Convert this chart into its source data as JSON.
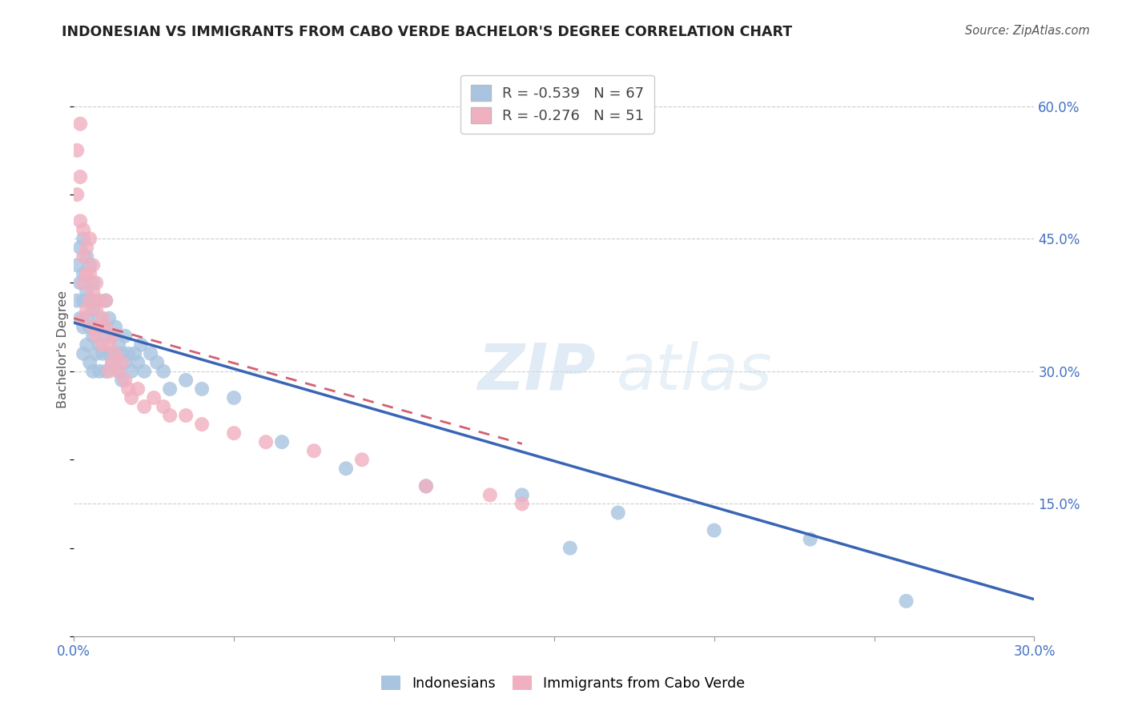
{
  "title": "INDONESIAN VS IMMIGRANTS FROM CABO VERDE BACHELOR'S DEGREE CORRELATION CHART",
  "source": "Source: ZipAtlas.com",
  "ylabel": "Bachelor's Degree",
  "xlim": [
    0.0,
    0.3
  ],
  "ylim": [
    0.0,
    0.65
  ],
  "y_ticks_right": [
    0.15,
    0.3,
    0.45,
    0.6
  ],
  "y_tick_labels_right": [
    "15.0%",
    "30.0%",
    "45.0%",
    "60.0%"
  ],
  "grid_color": "#c8c8c8",
  "background_color": "#ffffff",
  "watermark_zip": "ZIP",
  "watermark_atlas": "atlas",
  "indonesian_color": "#a8c4e0",
  "cabo_verde_color": "#f0b0c0",
  "indonesian_line_color": "#3a65b5",
  "cabo_verde_line_color": "#d46070",
  "legend_r_indonesian": "-0.539",
  "legend_n_indonesian": "67",
  "legend_r_cabo": "-0.276",
  "legend_n_cabo": "51",
  "indonesian_x": [
    0.001,
    0.001,
    0.002,
    0.002,
    0.002,
    0.003,
    0.003,
    0.003,
    0.003,
    0.003,
    0.004,
    0.004,
    0.004,
    0.004,
    0.005,
    0.005,
    0.005,
    0.005,
    0.006,
    0.006,
    0.006,
    0.006,
    0.007,
    0.007,
    0.007,
    0.008,
    0.008,
    0.008,
    0.009,
    0.009,
    0.01,
    0.01,
    0.01,
    0.011,
    0.011,
    0.012,
    0.012,
    0.013,
    0.013,
    0.014,
    0.014,
    0.015,
    0.015,
    0.016,
    0.016,
    0.017,
    0.018,
    0.019,
    0.02,
    0.021,
    0.022,
    0.024,
    0.026,
    0.028,
    0.03,
    0.035,
    0.04,
    0.05,
    0.065,
    0.085,
    0.11,
    0.14,
    0.17,
    0.2,
    0.23,
    0.26,
    0.155
  ],
  "indonesian_y": [
    0.42,
    0.38,
    0.44,
    0.4,
    0.36,
    0.45,
    0.41,
    0.38,
    0.35,
    0.32,
    0.43,
    0.39,
    0.36,
    0.33,
    0.42,
    0.38,
    0.35,
    0.31,
    0.4,
    0.37,
    0.34,
    0.3,
    0.38,
    0.35,
    0.32,
    0.36,
    0.33,
    0.3,
    0.35,
    0.32,
    0.38,
    0.34,
    0.3,
    0.36,
    0.32,
    0.34,
    0.31,
    0.35,
    0.32,
    0.33,
    0.3,
    0.32,
    0.29,
    0.34,
    0.31,
    0.32,
    0.3,
    0.32,
    0.31,
    0.33,
    0.3,
    0.32,
    0.31,
    0.3,
    0.28,
    0.29,
    0.28,
    0.27,
    0.22,
    0.19,
    0.17,
    0.16,
    0.14,
    0.12,
    0.11,
    0.04,
    0.1
  ],
  "cabo_verde_x": [
    0.001,
    0.001,
    0.002,
    0.002,
    0.002,
    0.003,
    0.003,
    0.003,
    0.003,
    0.004,
    0.004,
    0.004,
    0.005,
    0.005,
    0.005,
    0.006,
    0.006,
    0.006,
    0.007,
    0.007,
    0.007,
    0.008,
    0.008,
    0.009,
    0.009,
    0.01,
    0.01,
    0.011,
    0.011,
    0.012,
    0.012,
    0.013,
    0.014,
    0.015,
    0.016,
    0.017,
    0.018,
    0.02,
    0.022,
    0.025,
    0.028,
    0.03,
    0.035,
    0.04,
    0.05,
    0.06,
    0.075,
    0.09,
    0.11,
    0.13,
    0.14
  ],
  "cabo_verde_y": [
    0.55,
    0.5,
    0.58,
    0.52,
    0.47,
    0.46,
    0.43,
    0.4,
    0.36,
    0.44,
    0.41,
    0.37,
    0.45,
    0.41,
    0.38,
    0.42,
    0.39,
    0.35,
    0.4,
    0.37,
    0.34,
    0.38,
    0.35,
    0.36,
    0.33,
    0.38,
    0.35,
    0.33,
    0.3,
    0.34,
    0.31,
    0.32,
    0.3,
    0.31,
    0.29,
    0.28,
    0.27,
    0.28,
    0.26,
    0.27,
    0.26,
    0.25,
    0.25,
    0.24,
    0.23,
    0.22,
    0.21,
    0.2,
    0.17,
    0.16,
    0.15
  ],
  "indo_line_x": [
    0.0,
    0.3
  ],
  "indo_line_y": [
    0.355,
    0.042
  ],
  "cabo_line_x": [
    0.0,
    0.14
  ],
  "cabo_line_y": [
    0.36,
    0.218
  ]
}
